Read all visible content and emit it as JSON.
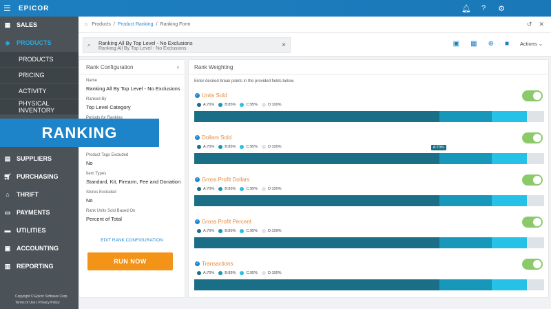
{
  "app": {
    "logo": "EPICOR",
    "menu_icon": "hamburger-icon",
    "icons": [
      "bell-icon",
      "help-icon",
      "gear-icon"
    ]
  },
  "sidebar": {
    "items": [
      {
        "label": "SALES",
        "icon": "sales-icon"
      },
      {
        "label": "PRODUCTS",
        "icon": "products-icon",
        "active": true
      },
      {
        "label": "SUPPLIERS",
        "icon": "suppliers-icon"
      },
      {
        "label": "PURCHASING",
        "icon": "purchasing-icon"
      },
      {
        "label": "THRIFT",
        "icon": "thrift-icon"
      },
      {
        "label": "PAYMENTS",
        "icon": "payments-icon"
      },
      {
        "label": "UTILITIES",
        "icon": "utilities-icon"
      },
      {
        "label": "ACCOUNTING",
        "icon": "accounting-icon"
      },
      {
        "label": "REPORTING",
        "icon": "reporting-icon"
      }
    ],
    "subitems": [
      "PRODUCTS",
      "PRICING",
      "ACTIVITY",
      "PHYSICAL INVENTORY"
    ],
    "footer": {
      "copyright": "Copyright © Epicor Software Corp.",
      "links": "Terms of Use | Privacy Policy"
    }
  },
  "overlay": {
    "label": "RANKING"
  },
  "breadcrumb": {
    "items": [
      "Products",
      "Product Ranking",
      "Ranking Form"
    ]
  },
  "toolbar": {
    "search_title": "Ranking All By Top Level - No Exclusions",
    "search_subtitle": "Ranking All By Top Level - No Exclusions",
    "actions_label": "Actions"
  },
  "rank_config": {
    "header": "Rank Configuration",
    "fields": [
      {
        "label": "Name",
        "value": "Ranking All By Top Level - No Exclusions"
      },
      {
        "label": "Ranked By",
        "value": "Top Level Category"
      },
      {
        "label": "Periods for Ranking",
        "value": ""
      },
      {
        "label": "Product Tags Excluded",
        "value": "No"
      },
      {
        "label": "Item Types",
        "value": "Standard, Kit, Firearm, Fee and Donation"
      },
      {
        "label": "Stores Excluded",
        "value": "No"
      },
      {
        "label": "Rank Units Sold Based On",
        "value": "Percent of Total"
      }
    ],
    "edit_link": "EDIT RANK CONFIGURATION",
    "run_button": "RUN NOW"
  },
  "rank_weighting": {
    "header": "Rank Weighting",
    "instructions": "Enter desired break points in the provided fields below.",
    "colors": {
      "A": "#1a6f86",
      "B": "#1797b9",
      "C": "#26c1e6",
      "D": "#dde3e7"
    },
    "metrics": [
      {
        "title": "Units Sold",
        "legend": [
          "A:70%",
          "B:85%",
          "C:95%",
          "D:100%"
        ],
        "breaks": [
          70,
          85,
          95,
          100
        ],
        "enabled": true
      },
      {
        "title": "Dollars Sold",
        "legend": [
          "A:70%",
          "B:85%",
          "C:95%",
          "D:100%"
        ],
        "breaks": [
          70,
          85,
          95,
          100
        ],
        "enabled": true,
        "tooltip": "A:70%"
      },
      {
        "title": "Gross Profit Dollars",
        "legend": [
          "A:70%",
          "B:85%",
          "C:95%",
          "D:100%"
        ],
        "breaks": [
          70,
          85,
          95,
          100
        ],
        "enabled": true
      },
      {
        "title": "Gross Profit Percent",
        "legend": [
          "A:70%",
          "B:85%",
          "C:95%",
          "D:100%"
        ],
        "breaks": [
          70,
          85,
          95,
          100
        ],
        "enabled": true
      },
      {
        "title": "Transactions",
        "legend": [
          "A:70%",
          "B:85%",
          "C:95%",
          "D:100%"
        ],
        "breaks": [
          70,
          85,
          95,
          100
        ],
        "enabled": true
      }
    ]
  }
}
